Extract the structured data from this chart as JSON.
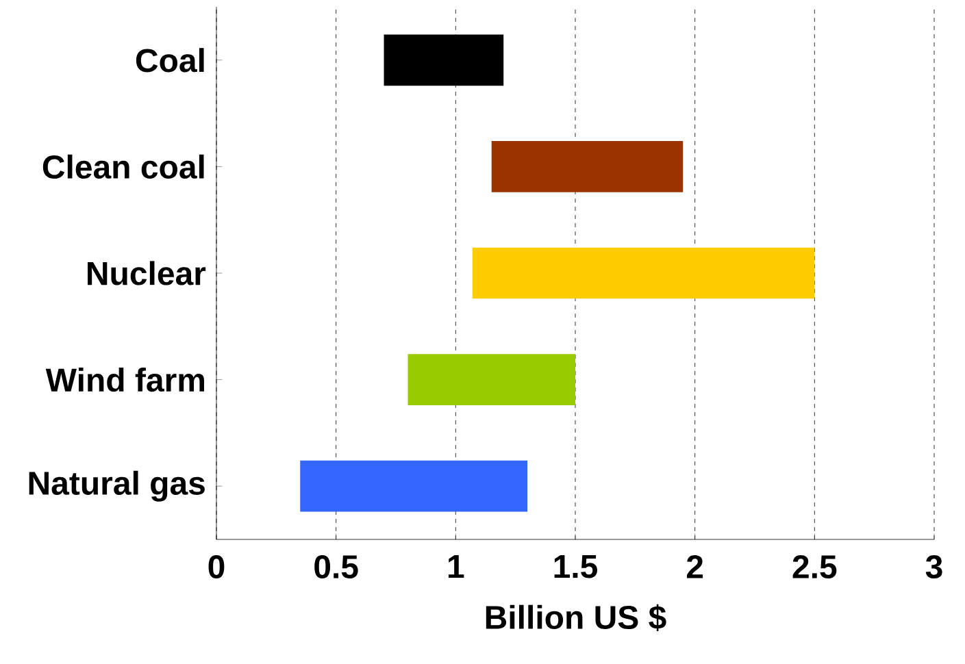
{
  "chart_data": {
    "type": "bar",
    "orientation": "horizontal",
    "xlabel": "Billion US $",
    "categories": [
      "Coal",
      "Clean coal",
      "Nuclear",
      "Wind farm",
      "Natural gas"
    ],
    "base": [
      0.7,
      1.15,
      1.07,
      0.8,
      0.35
    ],
    "values": [
      0.5,
      0.8,
      1.43,
      0.7,
      0.95
    ],
    "colors": [
      "#000000",
      "#993300",
      "#ffcc00",
      "#99cc00",
      "#3366ff"
    ],
    "xlim": [
      0,
      3
    ],
    "xticks": [
      0,
      0.5,
      1,
      1.5,
      2,
      2.5,
      3
    ],
    "grid": "x"
  }
}
